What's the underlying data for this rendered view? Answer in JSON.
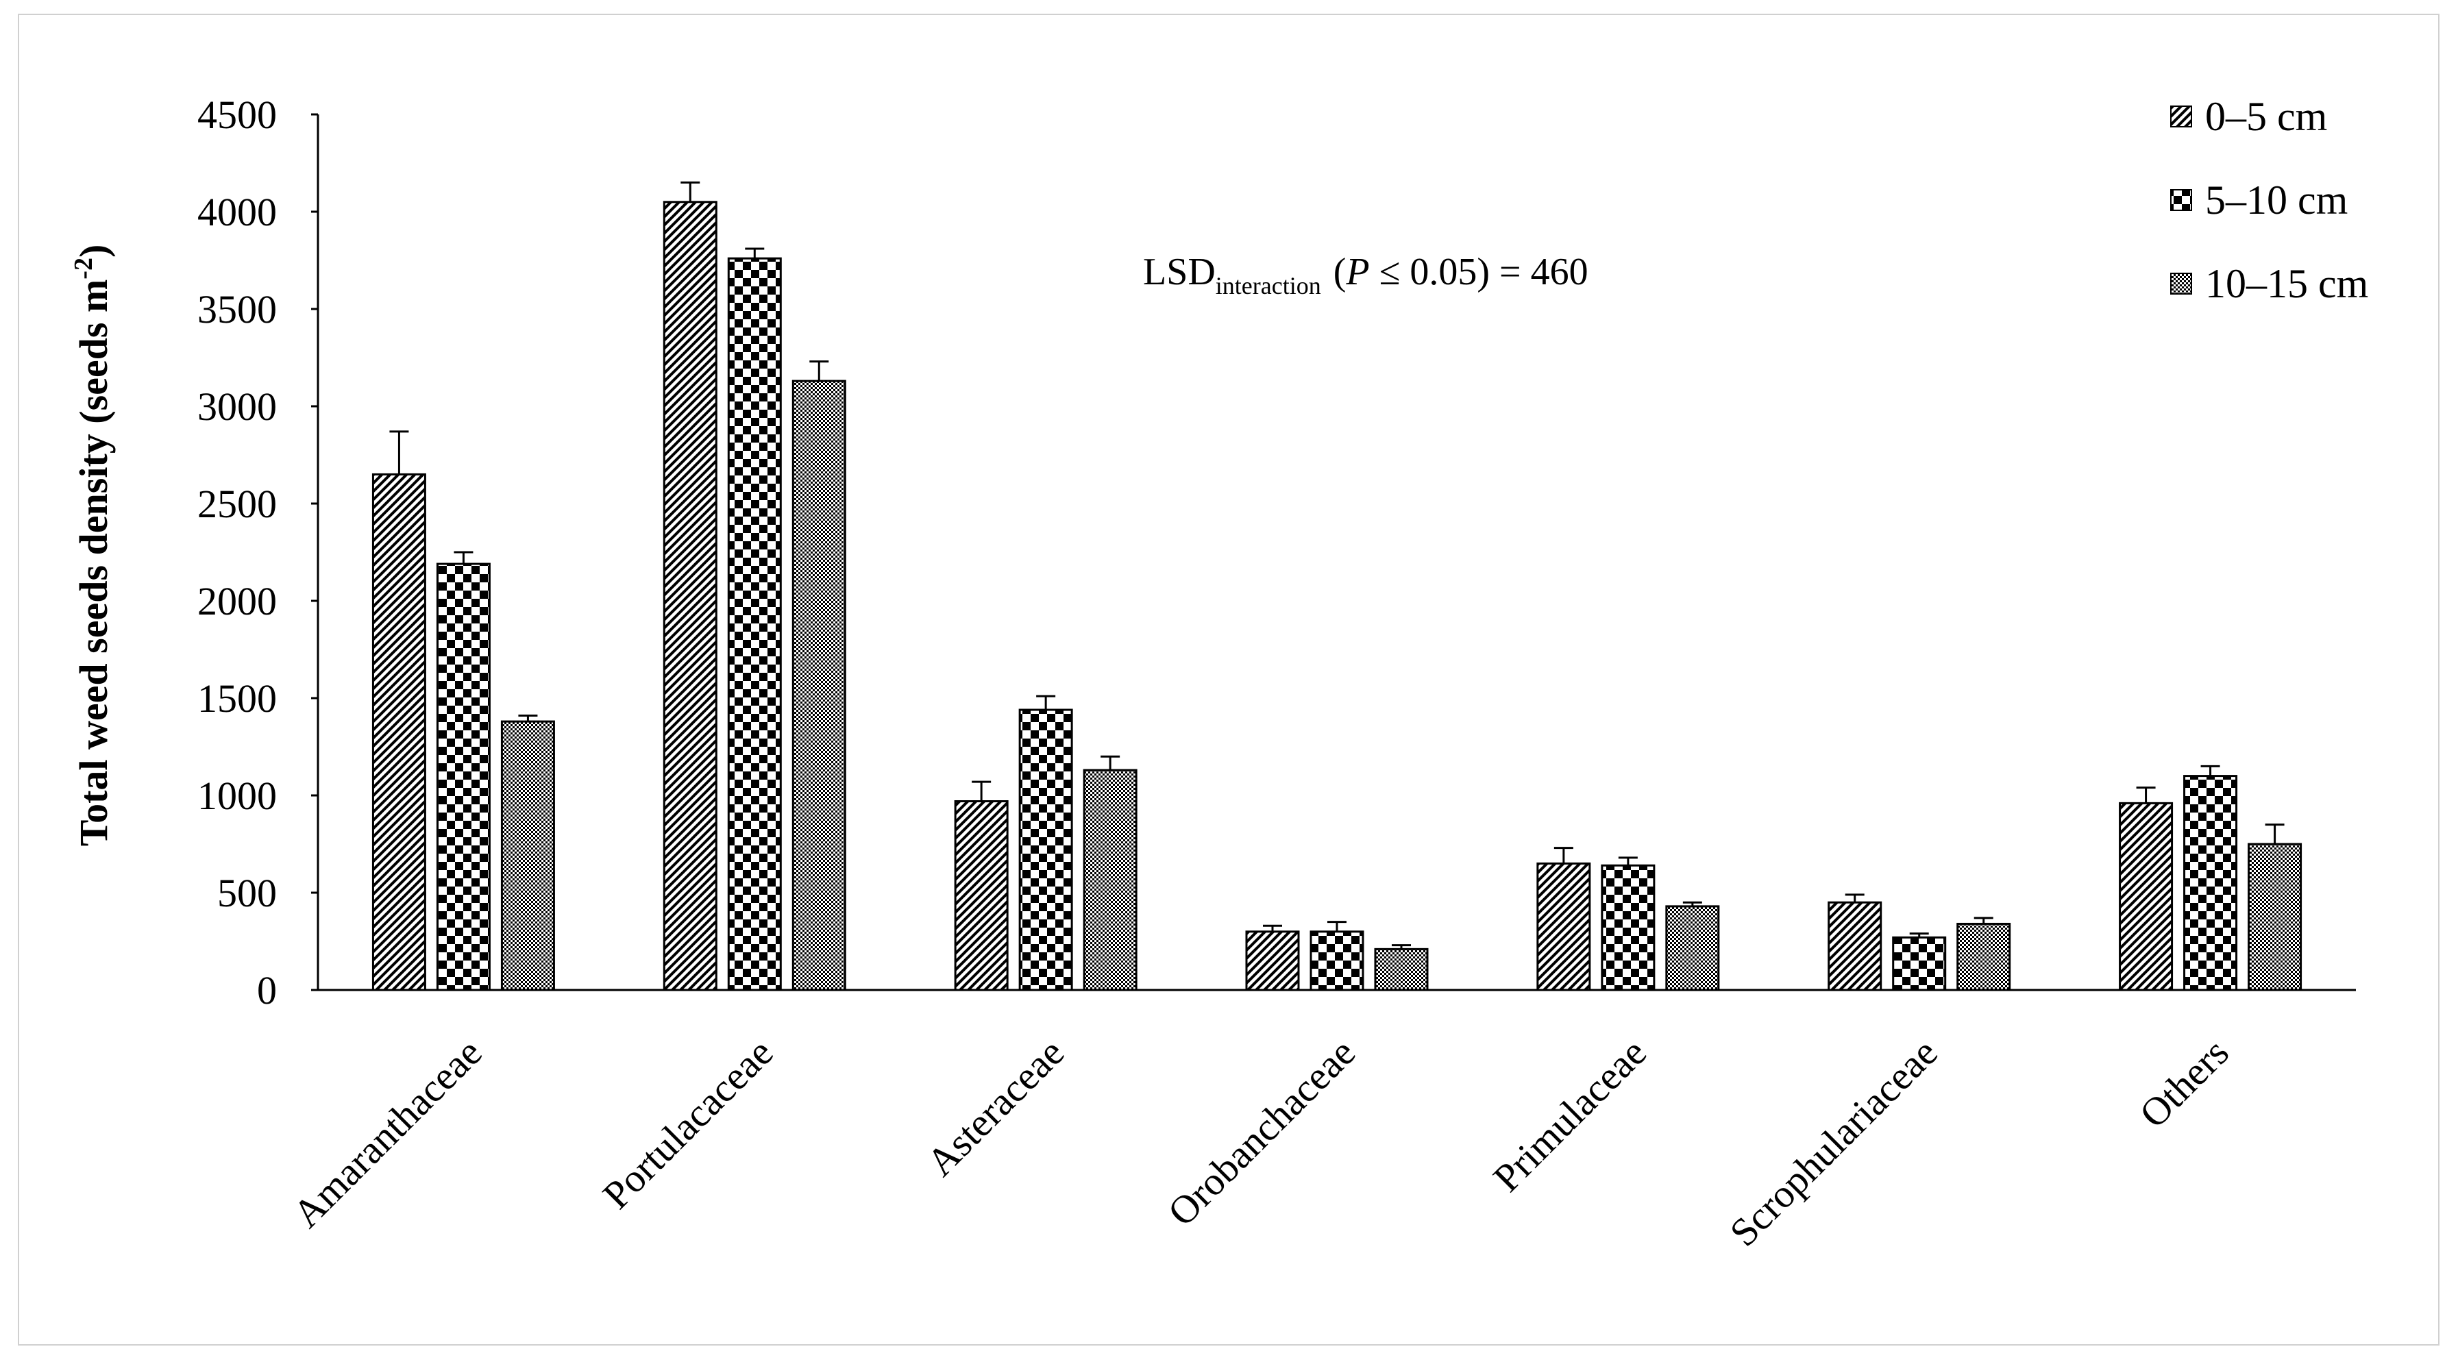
{
  "chart_data": {
    "type": "bar",
    "categories": [
      "Amaranthaceae",
      "Portulacaceae",
      "Asteraceae",
      "Orobanchaceae",
      "Primulaceae",
      "Scrophulariaceae",
      "Others"
    ],
    "series": [
      {
        "name": "0–5 cm",
        "pattern": "diagonal-hatch",
        "values": [
          2650,
          4050,
          970,
          300,
          650,
          450,
          960
        ],
        "errors": [
          220,
          100,
          100,
          30,
          80,
          40,
          80
        ]
      },
      {
        "name": "5–10 cm",
        "pattern": "checkerboard",
        "values": [
          2190,
          3760,
          1440,
          300,
          640,
          270,
          1100
        ],
        "errors": [
          60,
          50,
          70,
          50,
          40,
          20,
          50
        ]
      },
      {
        "name": "10–15 cm",
        "pattern": "fine-dots",
        "values": [
          1380,
          3130,
          1130,
          210,
          430,
          340,
          750
        ],
        "errors": [
          30,
          100,
          70,
          20,
          20,
          30,
          100
        ]
      }
    ],
    "ylabel": "Total weed seeds density (seeds m",
    "ylabel_sup": "-2",
    "ylabel_close": ")",
    "ylim": [
      0,
      4500
    ],
    "yticks": [
      0,
      500,
      1000,
      1500,
      2000,
      2500,
      3000,
      3500,
      4000,
      4500
    ],
    "grid": false,
    "legend_position": "top-right",
    "annotation": {
      "prefix": "LSD",
      "subscript": "interaction",
      "p_open": "(",
      "p_var": "P",
      "p_rest": " ≤ 0.05) = 460"
    },
    "colors": {
      "bar_fill": "#000000",
      "bar_bg": "#ffffff",
      "axis": "#000000"
    }
  }
}
